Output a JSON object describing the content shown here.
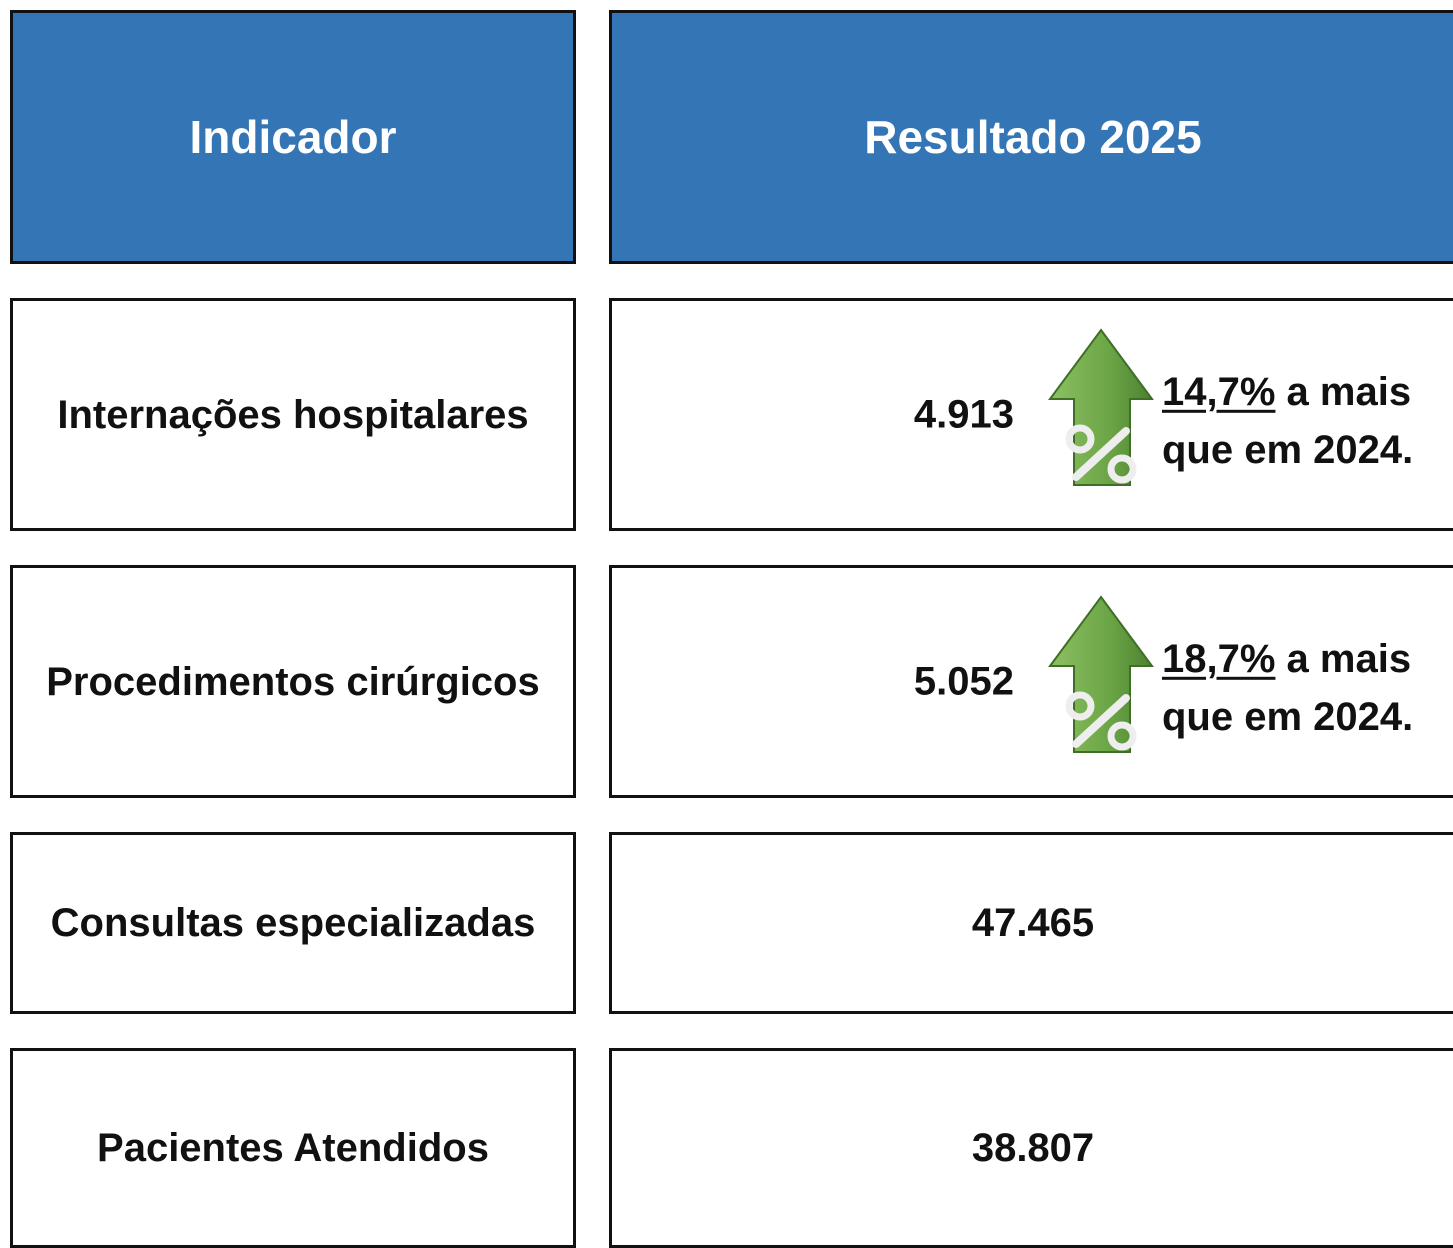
{
  "header": {
    "indicator": "Indicador",
    "result": "Resultado 2025"
  },
  "rows": [
    {
      "indicator": "Internações hospitalares",
      "value": "4.913",
      "change": "14,7%",
      "note": "a mais que em 2024."
    },
    {
      "indicator": "Procedimentos cirúrgicos",
      "value": "5.052",
      "change": "18,7%",
      "note": "a mais que em 2024."
    },
    {
      "indicator": "Consultas especializadas",
      "value": "47.465"
    },
    {
      "indicator": "Pacientes Atendidos",
      "value": "38.807"
    }
  ]
}
